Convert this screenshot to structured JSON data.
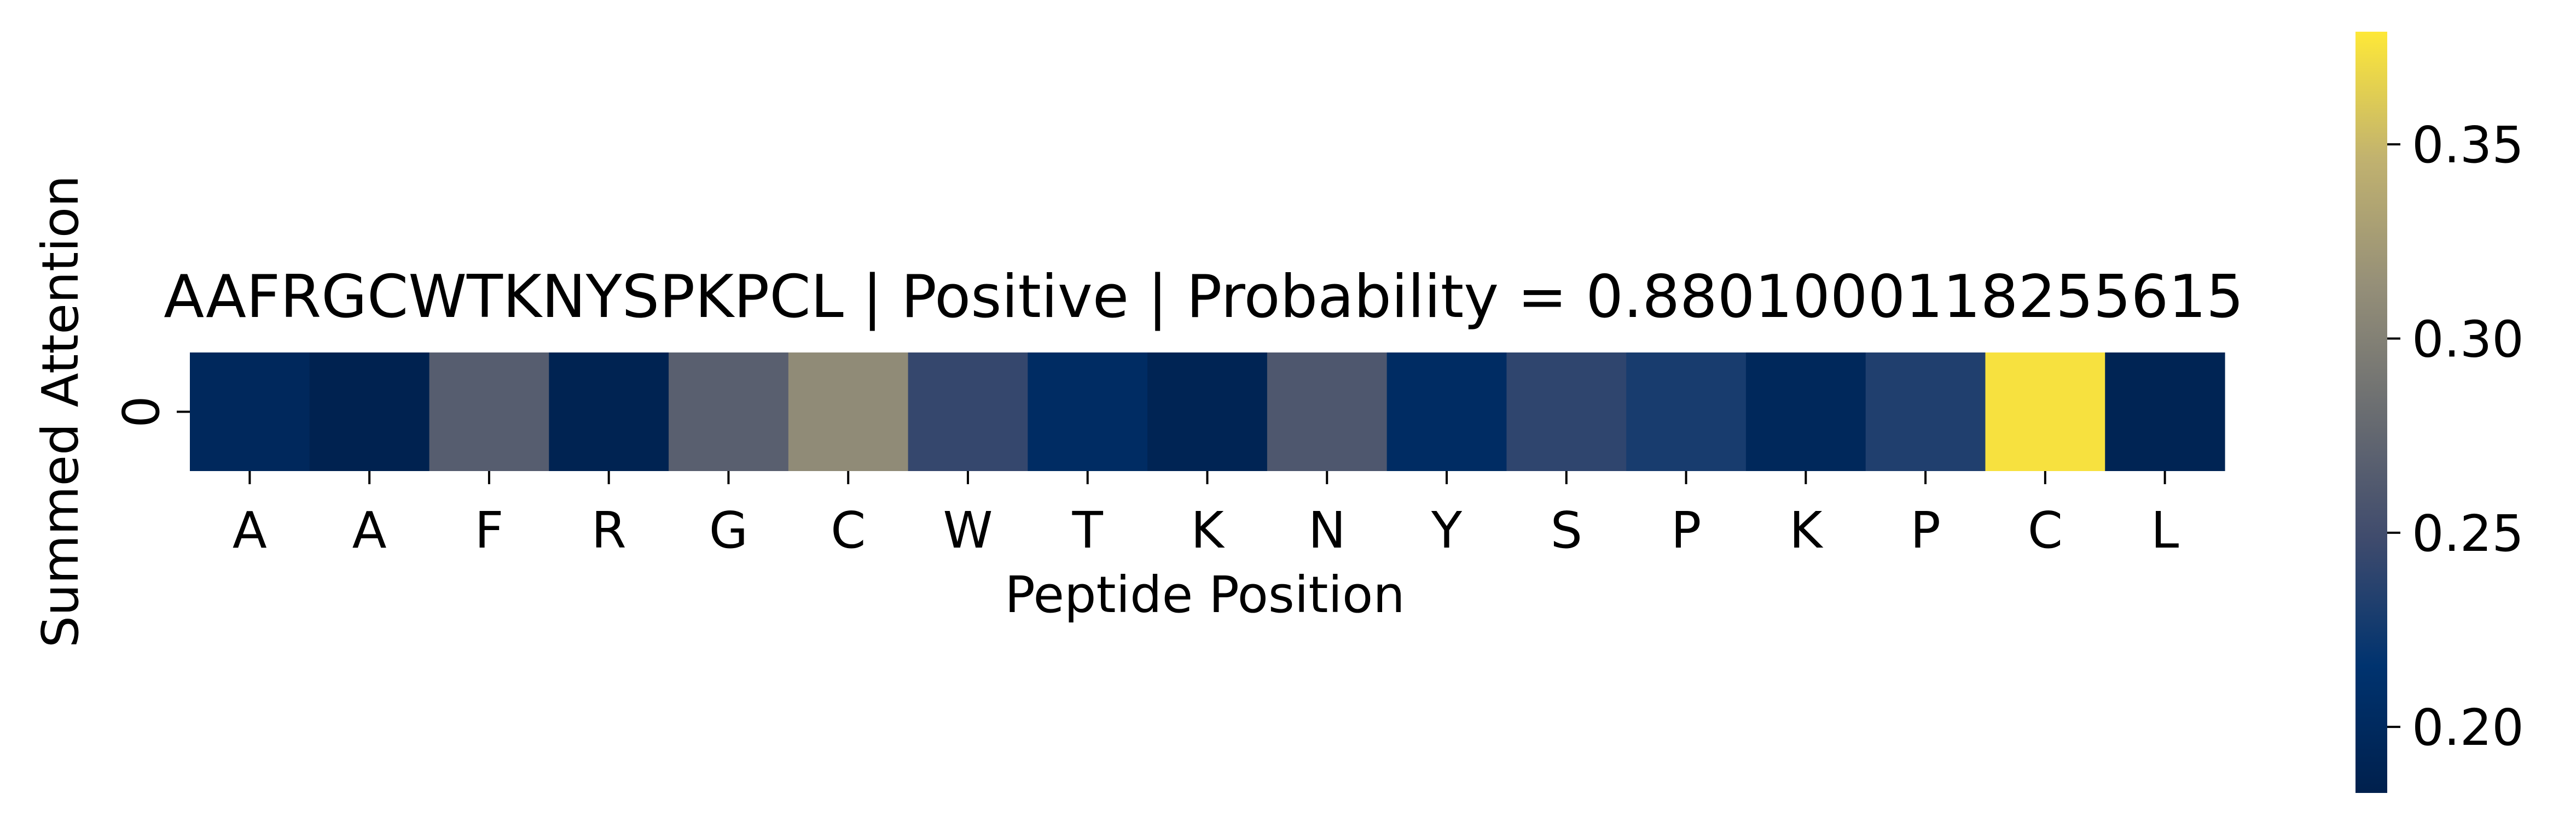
{
  "chart_data": {
    "type": "heatmap",
    "title": "AAFRGCWTKNYSPKPCL | Positive | Probability = 0.8801000118255615",
    "xlabel": "Peptide Position",
    "ylabel": "Summed Attention",
    "y_categories": [
      "0"
    ],
    "x_categories": [
      "A",
      "A",
      "F",
      "R",
      "G",
      "C",
      "W",
      "T",
      "K",
      "N",
      "Y",
      "S",
      "P",
      "K",
      "P",
      "C",
      "L"
    ],
    "values": [
      [
        0.197,
        0.186,
        0.266,
        0.188,
        0.268,
        0.31,
        0.243,
        0.204,
        0.19,
        0.26,
        0.204,
        0.24,
        0.228,
        0.196,
        0.232,
        0.375,
        0.19
      ]
    ],
    "colormap": "cividis",
    "colormap_stops": [
      "#00204d",
      "#00336f",
      "#3f4b6d",
      "#6a6d71",
      "#958f78",
      "#c1b26f",
      "#fee838"
    ],
    "colorbar": {
      "range": [
        0.183,
        0.379
      ],
      "ticks": [
        0.2,
        0.25,
        0.3,
        0.35
      ],
      "tick_labels": [
        "0.20",
        "0.25",
        "0.30",
        "0.35"
      ]
    },
    "grid": false
  }
}
